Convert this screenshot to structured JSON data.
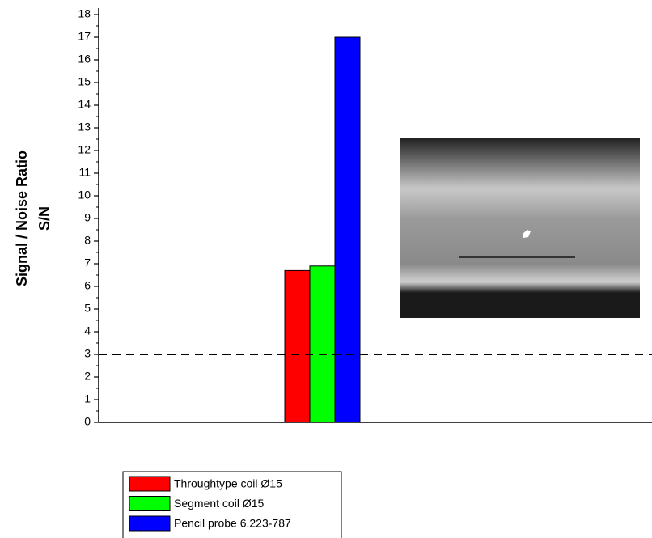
{
  "chart_data": {
    "type": "bar",
    "ylabel": [
      "Signal / Noise Ratio",
      "S/N"
    ],
    "categories": [
      null
    ],
    "series": [
      {
        "name": "Throughtype coil Ø15",
        "color": "#ff0000",
        "values": [
          6.7
        ]
      },
      {
        "name": "Segment coil Ø15",
        "color": "#00ff00",
        "values": [
          6.9
        ]
      },
      {
        "name": "Pencil probe 6.223-787",
        "color": "#0000ff",
        "values": [
          17
        ]
      }
    ],
    "ylim": [
      0,
      18
    ],
    "yticks": [
      0,
      1,
      2,
      3,
      4,
      5,
      6,
      7,
      8,
      9,
      10,
      11,
      12,
      13,
      14,
      15,
      16,
      17,
      18
    ],
    "reference_line": 3,
    "grid": false
  }
}
